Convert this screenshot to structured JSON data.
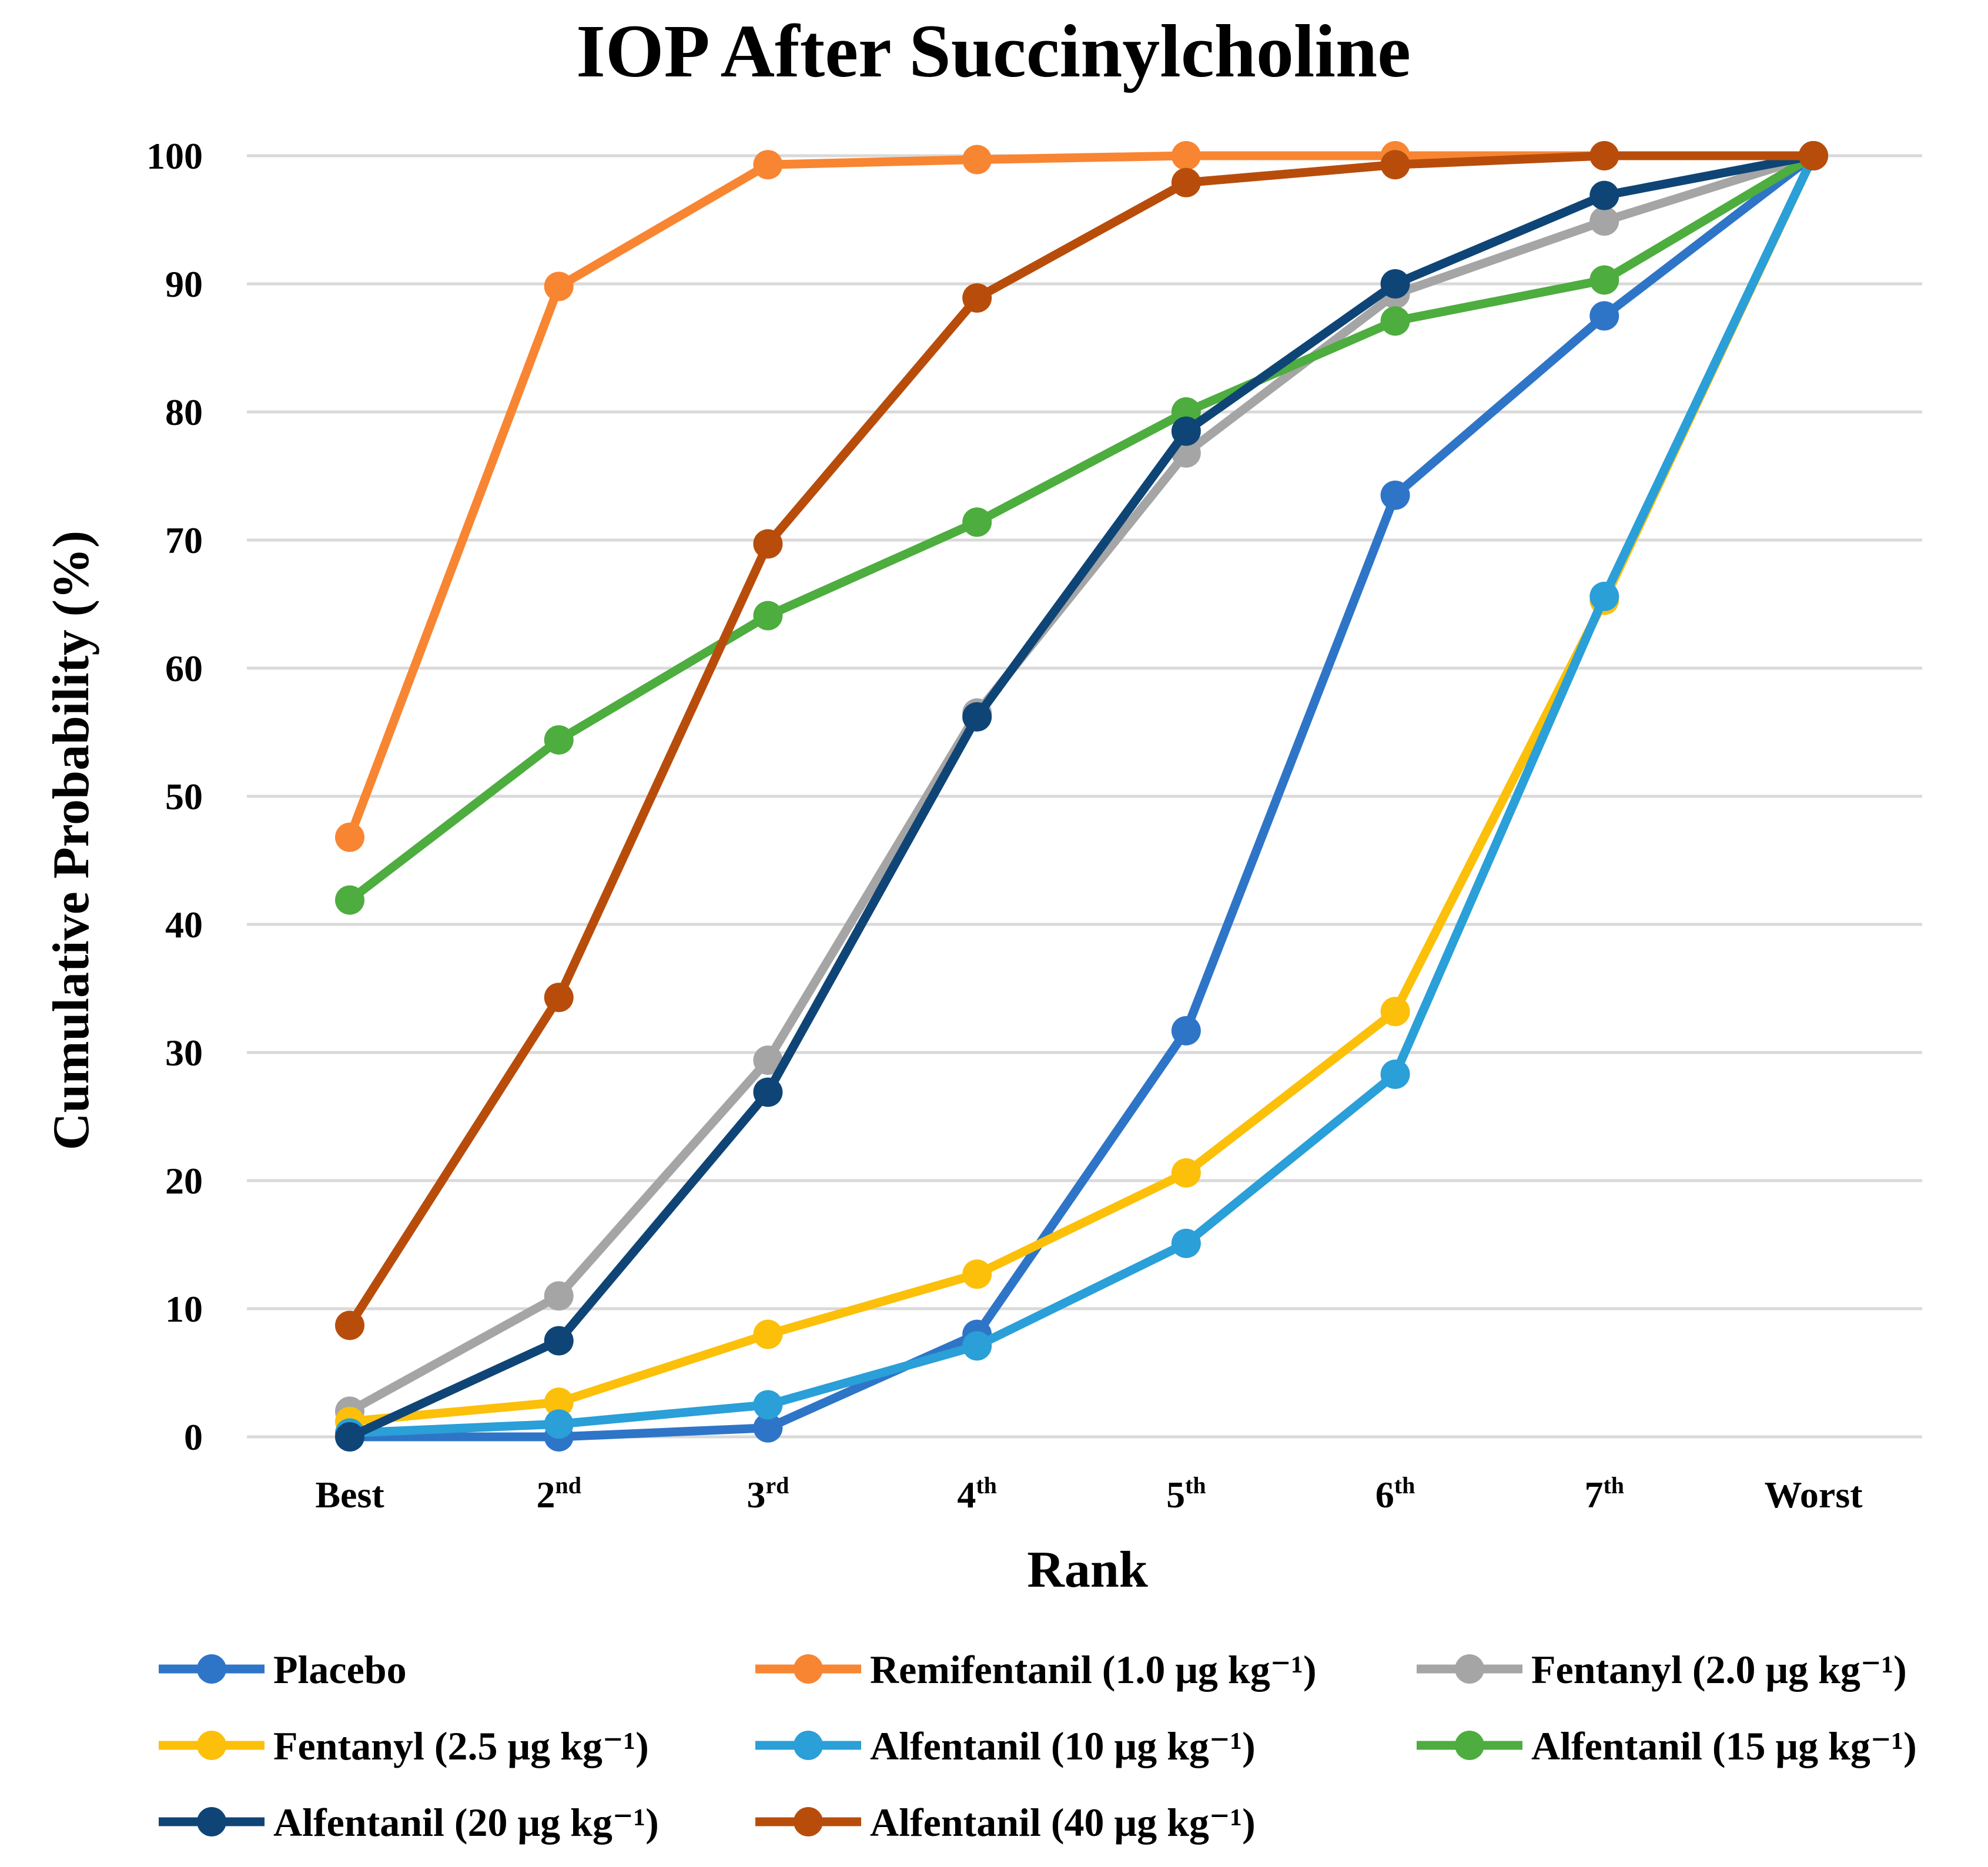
{
  "chart_data": {
    "type": "line",
    "title": "IOP After Succinylcholine",
    "xlabel": "Rank",
    "ylabel": "Cumulative Probability (%)",
    "ylim": [
      0,
      100
    ],
    "yticks": [
      "0",
      "10",
      "20",
      "30",
      "40",
      "50",
      "60",
      "70",
      "80",
      "90",
      "100"
    ],
    "grid": true,
    "legend_position": "bottom",
    "categories": [
      {
        "main": "Best",
        "sup": ""
      },
      {
        "main": "2",
        "sup": "nd"
      },
      {
        "main": "3",
        "sup": "rd"
      },
      {
        "main": "4",
        "sup": "th"
      },
      {
        "main": "5",
        "sup": "th"
      },
      {
        "main": "6",
        "sup": "th"
      },
      {
        "main": "7",
        "sup": "th"
      },
      {
        "main": "Worst",
        "sup": ""
      }
    ],
    "series": [
      {
        "name": "Placebo",
        "color": "#2e75c8",
        "values": [
          0,
          0,
          0.7,
          8.0,
          31.7,
          73.5,
          87.5,
          100
        ]
      },
      {
        "name": "Remifentanil (1.0 μg kg⁻¹)",
        "color": "#f88532",
        "values": [
          46.8,
          89.8,
          99.3,
          99.7,
          100,
          100,
          100,
          100
        ]
      },
      {
        "name": "Fentanyl (2.0 μg kg⁻¹)",
        "color": "#a5a5a5",
        "values": [
          2.0,
          11.0,
          29.4,
          56.5,
          76.8,
          89.2,
          94.9,
          100
        ]
      },
      {
        "name": "Fentanyl (2.5 μg kg⁻¹)",
        "color": "#fcc00a",
        "values": [
          1.2,
          2.7,
          8.0,
          12.7,
          20.6,
          33.2,
          65.3,
          100
        ]
      },
      {
        "name": "Alfentanil (10 μg kg⁻¹)",
        "color": "#2a9fd8",
        "values": [
          0.3,
          1.0,
          2.5,
          7.1,
          15.1,
          28.3,
          65.6,
          100
        ]
      },
      {
        "name": "Alfentanil (15 μg kg⁻¹)",
        "color": "#4dad3e",
        "values": [
          41.9,
          54.4,
          64.1,
          71.4,
          80.0,
          87.1,
          90.3,
          100
        ]
      },
      {
        "name": "Alfentanil (20 μg kg⁻¹)",
        "color": "#0f4576",
        "values": [
          0,
          7.5,
          26.9,
          56.2,
          78.5,
          90.0,
          96.9,
          100
        ]
      },
      {
        "name": "Alfentanil (40 μg kg⁻¹)",
        "color": "#b84d0b",
        "values": [
          8.7,
          34.3,
          69.7,
          88.9,
          97.9,
          99.3,
          100,
          100
        ]
      }
    ]
  }
}
